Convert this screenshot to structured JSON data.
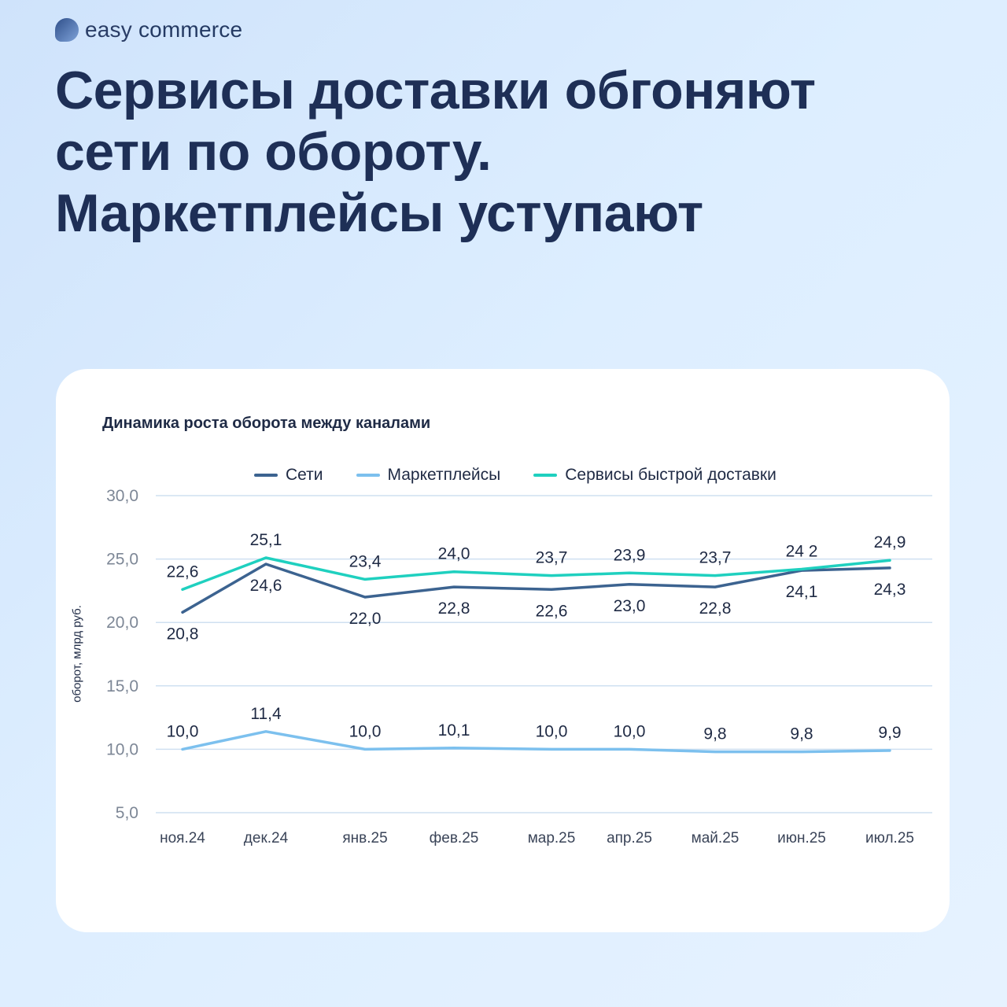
{
  "brand": {
    "name_part1": "easy",
    "name_part2": "commerce"
  },
  "headline": {
    "line1": "Сервисы доставки обгоняют",
    "line2": "сети по обороту.",
    "line3": "Маркетплейсы уступают"
  },
  "chart_data": {
    "type": "line",
    "title": "Динамика роста оборота между каналами",
    "ylabel": "оборот, млрд руб.",
    "xlabel": "",
    "ylim": [
      5,
      30
    ],
    "yticks": [
      "30,0",
      "25,0",
      "20,0",
      "15,0",
      "10,0",
      "5,0"
    ],
    "ytick_values": [
      30,
      25,
      20,
      15,
      10,
      5
    ],
    "categories": [
      "ноя.24",
      "дек.24",
      "янв.25",
      "фев.25",
      "мар.25",
      "апр.25",
      "май.25",
      "июн.25",
      "июл.25"
    ],
    "grid": true,
    "legend_position": "top",
    "series": [
      {
        "name": "Сети",
        "color": "#3c6390",
        "values": [
          20.8,
          24.6,
          22.0,
          22.8,
          22.6,
          23.0,
          22.8,
          24.1,
          24.3
        ],
        "labels": [
          "20,8",
          "24,6",
          "22,0",
          "22,8",
          "22,6",
          "23,0",
          "22,8",
          "24,1",
          "24,3"
        ],
        "label_side": "below"
      },
      {
        "name": "Маркетплейсы",
        "color": "#7cc0ee",
        "values": [
          10.0,
          11.4,
          10.0,
          10.1,
          10.0,
          10.0,
          9.8,
          9.8,
          9.9
        ],
        "labels": [
          "10,0",
          "11,4",
          "10,0",
          "10,1",
          "10,0",
          "10,0",
          "9,8",
          "9,8",
          "9,9"
        ],
        "label_side": "above"
      },
      {
        "name": "Сервисы быстрой доставки",
        "color": "#1fd0bf",
        "values": [
          22.6,
          25.1,
          23.4,
          24.0,
          23.7,
          23.9,
          23.7,
          24.2,
          24.9
        ],
        "labels": [
          "22,6",
          "25,1",
          "23,4",
          "24,0",
          "23,7",
          "23,9",
          "23,7",
          "24 2",
          "24,9"
        ],
        "label_side": "above"
      }
    ]
  }
}
